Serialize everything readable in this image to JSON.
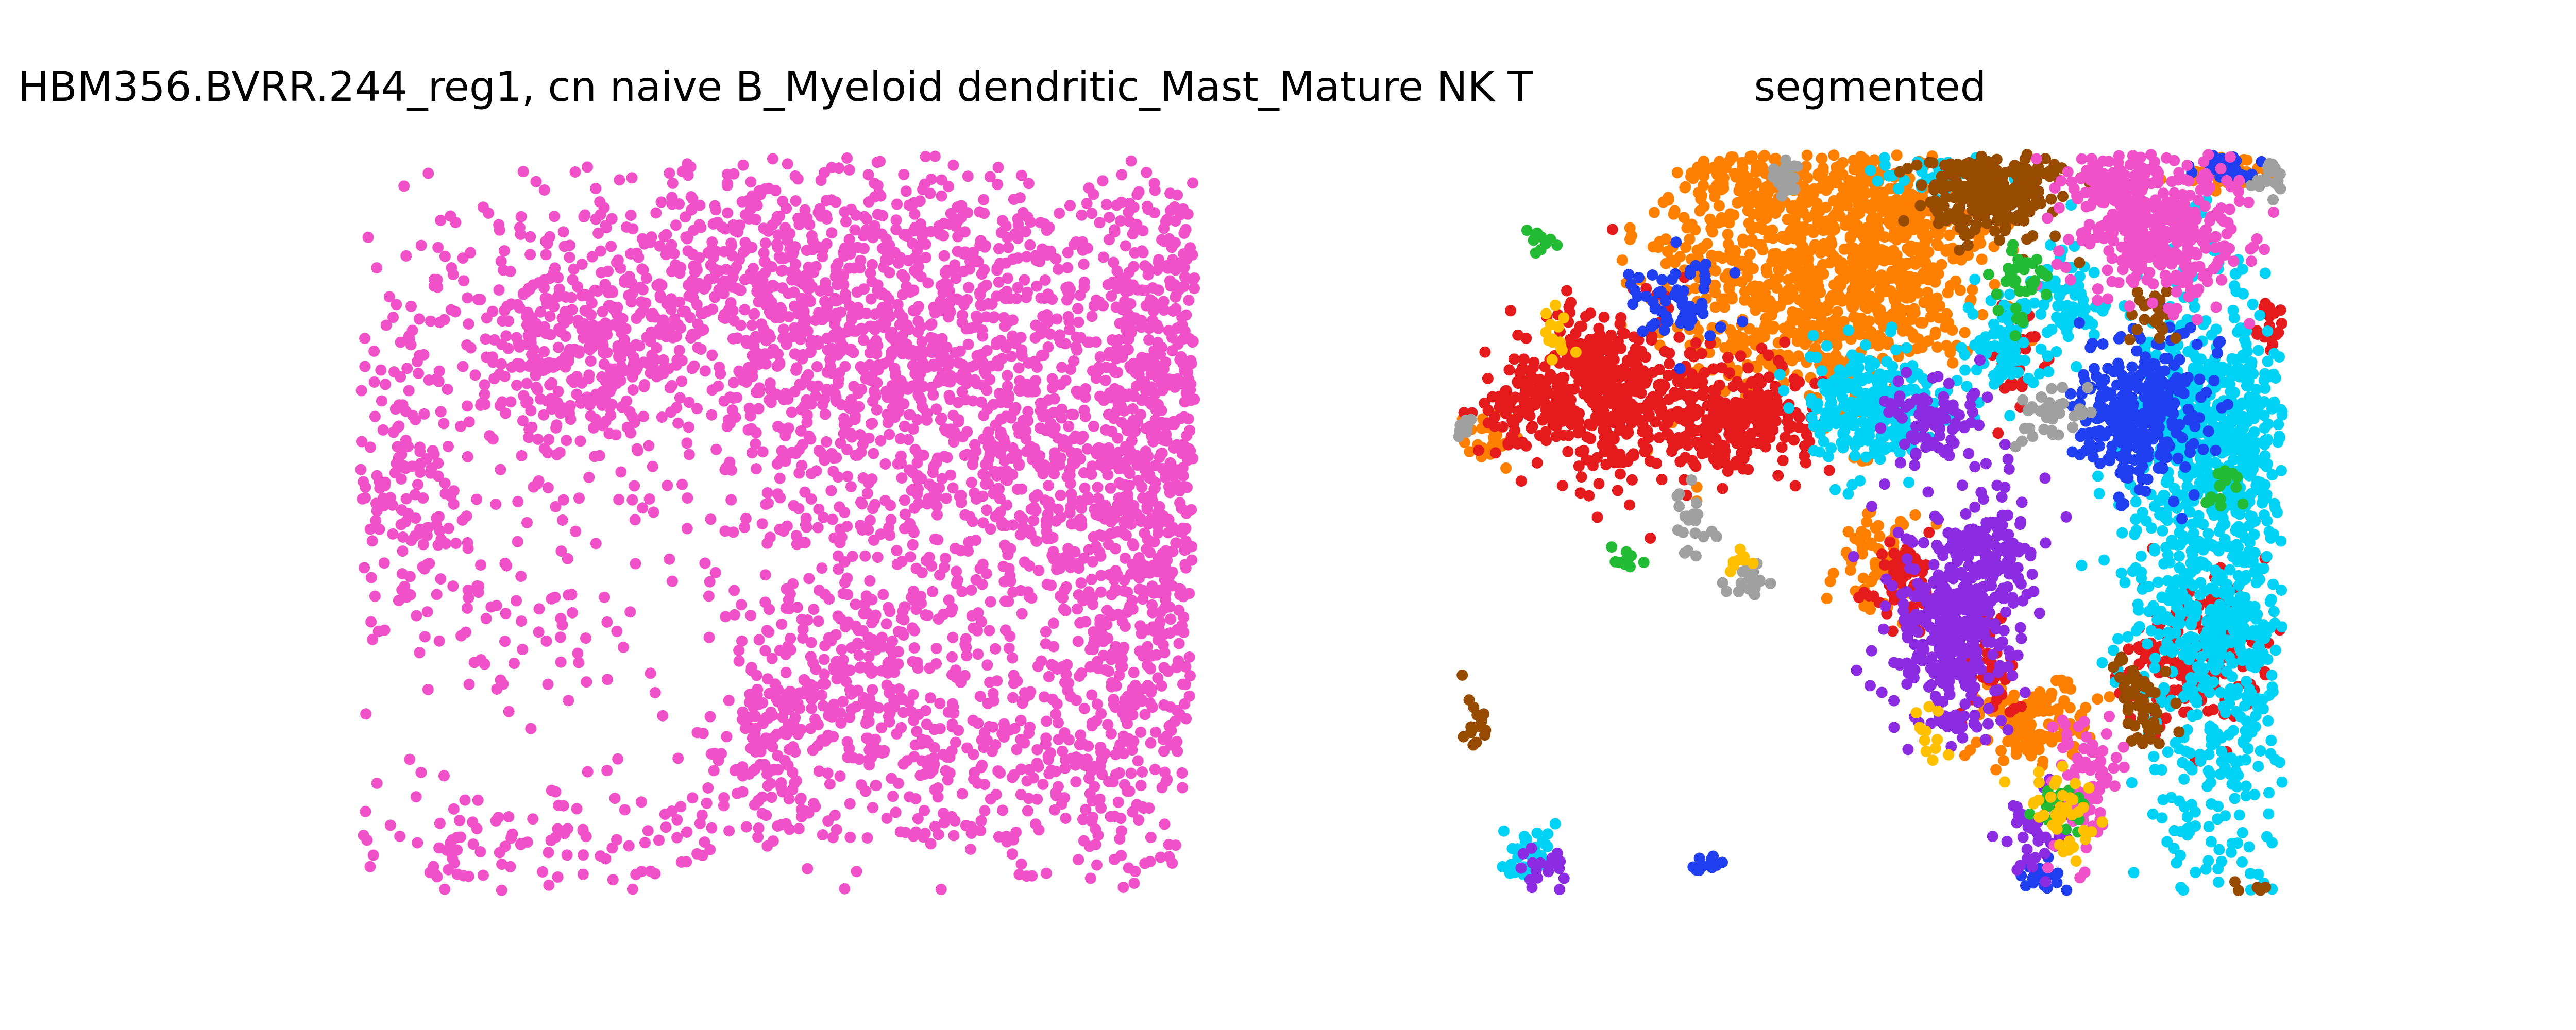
{
  "figure": {
    "background": "#ffffff"
  },
  "chart_data": [
    {
      "type": "scatter",
      "title": "HBM356.BVRR.244_reg1, cn naive B_Myeloid dendritic_Mast_Mature NK T",
      "xlabel": "",
      "ylabel": "",
      "axes_visible": false,
      "grid": false,
      "legend": "none",
      "xlim": [
        0,
        1
      ],
      "ylim": [
        0,
        1
      ],
      "series": [
        {
          "color": "#f050c8",
          "clusters": [
            {
              "cx": 0.55,
              "cy": 0.82,
              "sx": 0.22,
              "sy": 0.1,
              "n": 1100
            },
            {
              "cx": 0.28,
              "cy": 0.73,
              "sx": 0.08,
              "sy": 0.07,
              "n": 330
            },
            {
              "cx": 0.05,
              "cy": 0.58,
              "sx": 0.04,
              "sy": 0.12,
              "n": 160
            },
            {
              "cx": 0.63,
              "cy": 0.62,
              "sx": 0.12,
              "sy": 0.12,
              "n": 520
            },
            {
              "cx": 0.95,
              "cy": 0.6,
              "sx": 0.04,
              "sy": 0.2,
              "n": 620
            },
            {
              "cx": 0.83,
              "cy": 0.52,
              "sx": 0.06,
              "sy": 0.09,
              "n": 260
            },
            {
              "cx": 0.58,
              "cy": 0.3,
              "sx": 0.06,
              "sy": 0.08,
              "n": 220
            },
            {
              "cx": 0.72,
              "cy": 0.22,
              "sx": 0.08,
              "sy": 0.1,
              "n": 220
            },
            {
              "cx": 0.9,
              "cy": 0.2,
              "sx": 0.07,
              "sy": 0.1,
              "n": 240
            },
            {
              "cx": 0.5,
              "cy": 0.2,
              "sx": 0.04,
              "sy": 0.05,
              "n": 100
            },
            {
              "cx": 0.18,
              "cy": 0.4,
              "sx": 0.12,
              "sy": 0.08,
              "n": 110
            },
            {
              "cx": 0.15,
              "cy": 0.06,
              "sx": 0.13,
              "sy": 0.04,
              "n": 90
            },
            {
              "cx": 0.4,
              "cy": 0.09,
              "sx": 0.13,
              "sy": 0.05,
              "n": 80
            }
          ]
        }
      ]
    },
    {
      "type": "scatter",
      "title": "segmented",
      "xlabel": "",
      "ylabel": "",
      "axes_visible": false,
      "grid": false,
      "legend": "none",
      "xlim": [
        0,
        1
      ],
      "ylim": [
        0,
        1
      ],
      "series": [
        {
          "color": "#ff7f00",
          "clusters": [
            {
              "cx": 0.42,
              "cy": 0.84,
              "sx": 0.09,
              "sy": 0.09,
              "n": 800
            },
            {
              "cx": 0.54,
              "cy": 0.85,
              "sx": 0.05,
              "sy": 0.06,
              "n": 200
            },
            {
              "cx": 0.5,
              "cy": 0.95,
              "sx": 0.05,
              "sy": 0.04,
              "n": 120
            },
            {
              "cx": 0.7,
              "cy": 0.23,
              "sx": 0.03,
              "sy": 0.03,
              "n": 150
            },
            {
              "cx": 0.32,
              "cy": 0.97,
              "sx": 0.04,
              "sy": 0.02,
              "n": 60
            },
            {
              "cx": 0.94,
              "cy": 0.98,
              "sx": 0.03,
              "sy": 0.015,
              "n": 45
            },
            {
              "cx": 0.5,
              "cy": 0.45,
              "sx": 0.03,
              "sy": 0.05,
              "n": 60
            },
            {
              "cx": 0.04,
              "cy": 0.62,
              "sx": 0.015,
              "sy": 0.02,
              "n": 25
            }
          ]
        },
        {
          "color": "#e41a1c",
          "clusters": [
            {
              "cx": 0.18,
              "cy": 0.68,
              "sx": 0.05,
              "sy": 0.06,
              "n": 400
            },
            {
              "cx": 0.33,
              "cy": 0.64,
              "sx": 0.05,
              "sy": 0.04,
              "n": 260
            },
            {
              "cx": 0.08,
              "cy": 0.66,
              "sx": 0.03,
              "sy": 0.03,
              "n": 80
            },
            {
              "cx": 0.9,
              "cy": 0.32,
              "sx": 0.045,
              "sy": 0.045,
              "n": 200
            },
            {
              "cx": 0.54,
              "cy": 0.42,
              "sx": 0.02,
              "sy": 0.03,
              "n": 60
            },
            {
              "cx": 0.64,
              "cy": 0.3,
              "sx": 0.02,
              "sy": 0.03,
              "n": 45
            },
            {
              "cx": 0.68,
              "cy": 0.73,
              "sx": 0.015,
              "sy": 0.03,
              "n": 35
            },
            {
              "cx": 0.98,
              "cy": 0.77,
              "sx": 0.01,
              "sy": 0.02,
              "n": 20
            }
          ]
        },
        {
          "color": "#00d2f5",
          "clusters": [
            {
              "cx": 0.92,
              "cy": 0.42,
              "sx": 0.05,
              "sy": 0.2,
              "n": 900
            },
            {
              "cx": 0.93,
              "cy": 0.65,
              "sx": 0.05,
              "sy": 0.06,
              "n": 220
            },
            {
              "cx": 0.5,
              "cy": 0.66,
              "sx": 0.04,
              "sy": 0.04,
              "n": 240
            },
            {
              "cx": 0.66,
              "cy": 0.74,
              "sx": 0.02,
              "sy": 0.04,
              "n": 80
            },
            {
              "cx": 0.74,
              "cy": 0.81,
              "sx": 0.02,
              "sy": 0.04,
              "n": 70
            },
            {
              "cx": 0.58,
              "cy": 0.97,
              "sx": 0.03,
              "sy": 0.015,
              "n": 40
            },
            {
              "cx": 0.08,
              "cy": 0.05,
              "sx": 0.02,
              "sy": 0.02,
              "n": 30
            }
          ]
        },
        {
          "color": "#1f3ff0",
          "clusters": [
            {
              "cx": 0.83,
              "cy": 0.65,
              "sx": 0.04,
              "sy": 0.05,
              "n": 300
            },
            {
              "cx": 0.93,
              "cy": 0.98,
              "sx": 0.02,
              "sy": 0.01,
              "n": 30
            },
            {
              "cx": 0.26,
              "cy": 0.8,
              "sx": 0.03,
              "sy": 0.03,
              "n": 60
            },
            {
              "cx": 0.71,
              "cy": 0.02,
              "sx": 0.015,
              "sy": 0.015,
              "n": 20
            },
            {
              "cx": 0.3,
              "cy": 0.04,
              "sx": 0.01,
              "sy": 0.01,
              "n": 12
            }
          ]
        },
        {
          "color": "#8b2be2",
          "clusters": [
            {
              "cx": 0.6,
              "cy": 0.35,
              "sx": 0.04,
              "sy": 0.07,
              "n": 380
            },
            {
              "cx": 0.65,
              "cy": 0.47,
              "sx": 0.025,
              "sy": 0.05,
              "n": 100
            },
            {
              "cx": 0.58,
              "cy": 0.64,
              "sx": 0.03,
              "sy": 0.03,
              "n": 80
            },
            {
              "cx": 0.7,
              "cy": 0.09,
              "sx": 0.02,
              "sy": 0.03,
              "n": 40
            },
            {
              "cx": 0.11,
              "cy": 0.03,
              "sx": 0.015,
              "sy": 0.015,
              "n": 18
            }
          ]
        },
        {
          "color": "#964b00",
          "clusters": [
            {
              "cx": 0.65,
              "cy": 0.95,
              "sx": 0.04,
              "sy": 0.03,
              "n": 260
            },
            {
              "cx": 0.83,
              "cy": 0.25,
              "sx": 0.02,
              "sy": 0.03,
              "n": 50
            },
            {
              "cx": 0.02,
              "cy": 0.22,
              "sx": 0.01,
              "sy": 0.03,
              "n": 15
            },
            {
              "cx": 0.95,
              "cy": 0.0,
              "sx": 0.02,
              "sy": 0.01,
              "n": 12
            },
            {
              "cx": 0.84,
              "cy": 0.78,
              "sx": 0.015,
              "sy": 0.02,
              "n": 25
            }
          ]
        },
        {
          "color": "#f050c8",
          "clusters": [
            {
              "cx": 0.85,
              "cy": 0.9,
              "sx": 0.05,
              "sy": 0.05,
              "n": 380
            },
            {
              "cx": 0.76,
              "cy": 0.15,
              "sx": 0.025,
              "sy": 0.05,
              "n": 90
            },
            {
              "cx": 0.8,
              "cy": 0.97,
              "sx": 0.03,
              "sy": 0.02,
              "n": 50
            }
          ]
        },
        {
          "color": "#a0a0a0",
          "clusters": [
            {
              "cx": 0.72,
              "cy": 0.65,
              "sx": 0.02,
              "sy": 0.02,
              "n": 40
            },
            {
              "cx": 0.4,
              "cy": 0.97,
              "sx": 0.01,
              "sy": 0.01,
              "n": 25
            },
            {
              "cx": 0.99,
              "cy": 0.97,
              "sx": 0.01,
              "sy": 0.01,
              "n": 25
            },
            {
              "cx": 0.35,
              "cy": 0.42,
              "sx": 0.01,
              "sy": 0.015,
              "n": 20
            },
            {
              "cx": 0.0,
              "cy": 0.63,
              "sx": 0.008,
              "sy": 0.008,
              "n": 12
            },
            {
              "cx": 0.28,
              "cy": 0.5,
              "sx": 0.015,
              "sy": 0.03,
              "n": 20
            }
          ]
        },
        {
          "color": "#22bb33",
          "clusters": [
            {
              "cx": 0.68,
              "cy": 0.82,
              "sx": 0.015,
              "sy": 0.03,
              "n": 35
            },
            {
              "cx": 0.73,
              "cy": 0.11,
              "sx": 0.015,
              "sy": 0.02,
              "n": 20
            },
            {
              "cx": 0.1,
              "cy": 0.88,
              "sx": 0.008,
              "sy": 0.008,
              "n": 10
            },
            {
              "cx": 0.93,
              "cy": 0.55,
              "sx": 0.01,
              "sy": 0.02,
              "n": 15
            },
            {
              "cx": 0.2,
              "cy": 0.45,
              "sx": 0.01,
              "sy": 0.01,
              "n": 10
            }
          ]
        },
        {
          "color": "#ffc000",
          "clusters": [
            {
              "cx": 0.73,
              "cy": 0.11,
              "sx": 0.02,
              "sy": 0.03,
              "n": 40
            },
            {
              "cx": 0.12,
              "cy": 0.75,
              "sx": 0.01,
              "sy": 0.02,
              "n": 15
            },
            {
              "cx": 0.58,
              "cy": 0.22,
              "sx": 0.01,
              "sy": 0.02,
              "n": 12
            },
            {
              "cx": 0.34,
              "cy": 0.45,
              "sx": 0.008,
              "sy": 0.01,
              "n": 8
            }
          ]
        }
      ]
    }
  ]
}
